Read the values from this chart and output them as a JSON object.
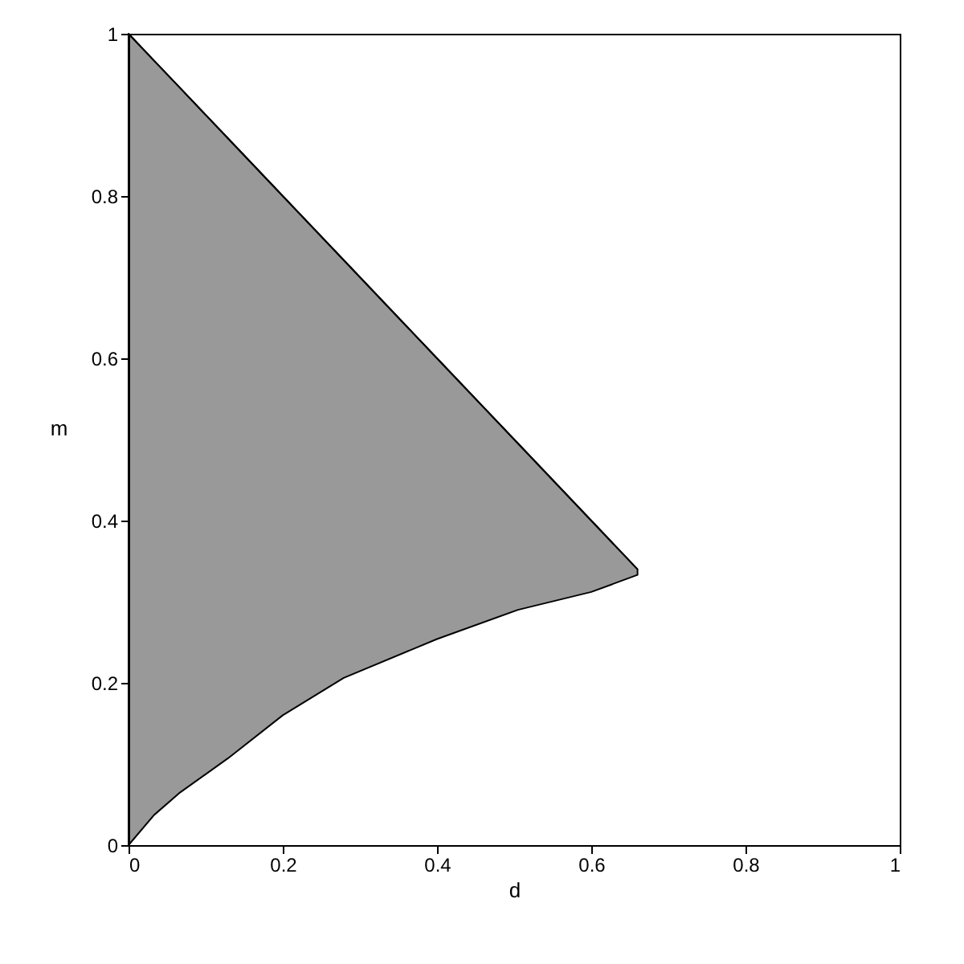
{
  "chart_data": {
    "type": "line",
    "xlabel": "d",
    "ylabel": "m",
    "x": [
      0,
      0.033,
      0.067,
      0.129,
      0.2,
      0.279,
      0.4,
      0.505,
      0.6,
      0.66
    ],
    "series": [
      {
        "color": "#000000",
        "values": [
          1,
          0.967,
          0.933,
          0.871,
          0.8,
          0.721,
          0.6,
          0.495,
          0.4,
          0.34
        ],
        "upper": [
          1,
          0.967,
          0.933,
          0.871,
          0.8,
          0.721,
          0.6,
          0.495,
          0.4,
          0.34
        ],
        "lower": [
          0,
          0.037,
          0.065,
          0.107,
          0.16,
          0.206,
          0.254,
          0.29,
          0.312,
          0.333
        ]
      }
    ],
    "xlim": [
      0,
      1
    ],
    "ylim": [
      0,
      1
    ],
    "xticks": [
      0,
      0.2,
      0.4,
      0.6,
      0.8,
      1
    ],
    "yticks": [
      0,
      0.2,
      0.4,
      0.6,
      0.8,
      1
    ],
    "grid": false,
    "marker": "none",
    "line_style": "solid"
  }
}
